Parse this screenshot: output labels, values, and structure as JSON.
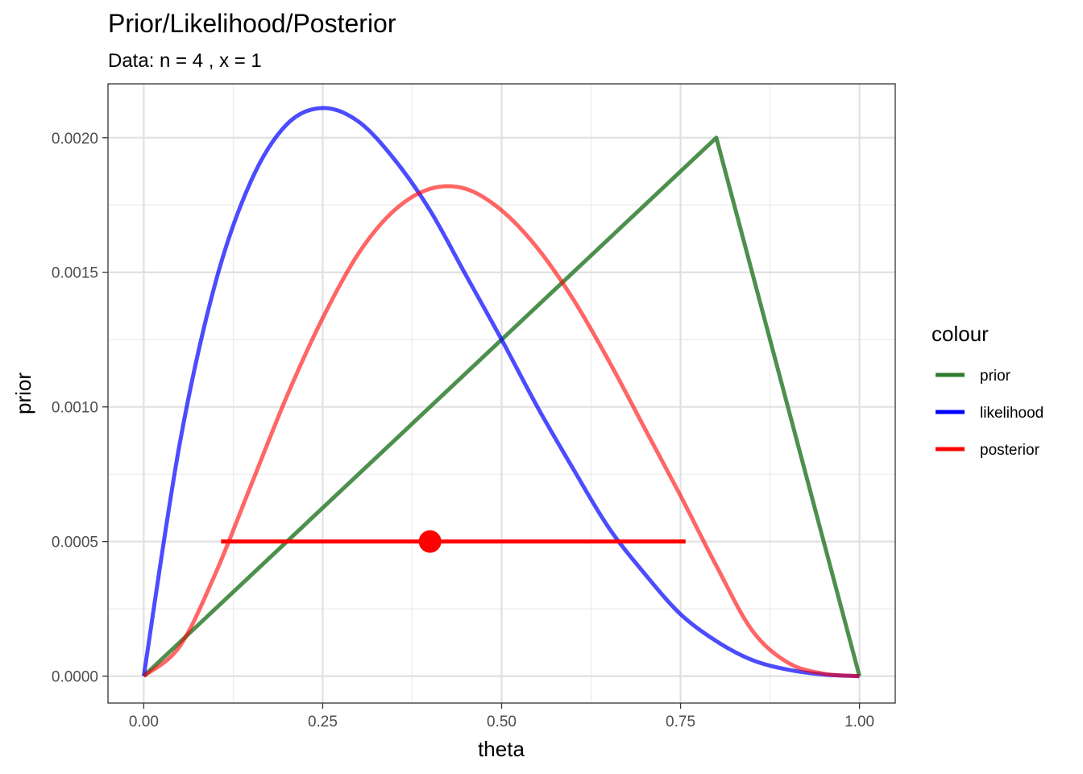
{
  "chart_data": {
    "type": "line",
    "title": "Prior/Likelihood/Posterior",
    "subtitle": "Data: n = 4 , x = 1",
    "xlabel": "theta",
    "ylabel": "prior",
    "xlim": [
      -0.05,
      1.05
    ],
    "ylim": [
      -0.0001,
      0.0022
    ],
    "x_ticks": [
      0,
      0.25,
      0.5,
      0.75,
      1
    ],
    "x_tick_labels": [
      "0.00",
      "0.25",
      "0.50",
      "0.75",
      "1.00"
    ],
    "y_ticks": [
      0,
      0.0005,
      0.001,
      0.0015,
      0.002
    ],
    "y_tick_labels": [
      "0.0000",
      "0.0005",
      "0.0010",
      "0.0015",
      "0.0020"
    ],
    "grid": true,
    "legend": {
      "title": "colour",
      "position": "right",
      "entries": [
        {
          "label": "prior",
          "color": "#2E7D2E"
        },
        {
          "label": "likelihood",
          "color": "#0000FF"
        },
        {
          "label": "posterior",
          "color": "#FF0000"
        }
      ]
    },
    "series": [
      {
        "name": "prior",
        "color": "#2E7D2E",
        "opacity": 0.85,
        "x": [
          0,
          0.8,
          1.0
        ],
        "y": [
          0,
          0.002,
          0
        ]
      },
      {
        "name": "likelihood",
        "color": "#0000FF",
        "opacity": 0.7,
        "x": [
          0,
          0.05,
          0.1,
          0.15,
          0.2,
          0.25,
          0.3,
          0.35,
          0.4,
          0.45,
          0.5,
          0.55,
          0.6,
          0.65,
          0.7,
          0.75,
          0.8,
          0.85,
          0.9,
          0.95,
          1.0
        ],
        "y": [
          0,
          0.00086,
          0.00146,
          0.00184,
          0.00205,
          0.00211,
          0.00206,
          0.00192,
          0.00173,
          0.00149,
          0.00125,
          0.001,
          0.00077,
          0.00055,
          0.00038,
          0.00023,
          0.00013,
          6e-05,
          2.4e-05,
          6e-06,
          0
        ],
        "scale": 0.0
      },
      {
        "name": "posterior",
        "color": "#FF0000",
        "opacity": 0.6,
        "x": [
          0,
          0.05,
          0.1,
          0.15,
          0.2,
          0.25,
          0.3,
          0.35,
          0.4,
          0.45,
          0.5,
          0.55,
          0.6,
          0.65,
          0.7,
          0.75,
          0.8,
          0.85,
          0.9,
          0.95,
          1.0
        ],
        "y": [
          0,
          0.00011,
          0.00038,
          0.00071,
          0.00104,
          0.00133,
          0.00157,
          0.00173,
          0.00181,
          0.00181,
          0.00173,
          0.00159,
          0.0014,
          0.00117,
          0.00092,
          0.00067,
          0.00041,
          0.00017,
          5e-05,
          9e-06,
          0
        ]
      }
    ],
    "interval": {
      "color": "#FF0000",
      "x_start": 0.108,
      "x_end": 0.757,
      "y": 0.0005,
      "point_x": 0.4,
      "point_y": 0.0005
    }
  }
}
